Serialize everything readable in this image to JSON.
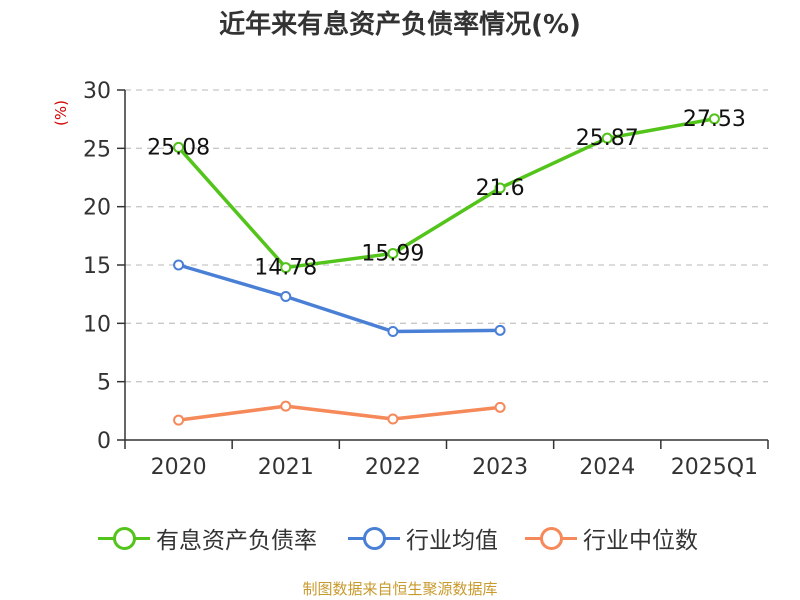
{
  "chart_data": {
    "type": "line",
    "title": "近年来有息资产负债率情况(%)",
    "ylabel": "(%)",
    "categories": [
      "2020",
      "2021",
      "2022",
      "2023",
      "2024",
      "2025Q1"
    ],
    "ylim": [
      0,
      30
    ],
    "yticks": [
      0,
      5,
      10,
      15,
      20,
      25,
      30
    ],
    "grid": "horizontal-dashed",
    "legend_position": "bottom",
    "series": [
      {
        "name": "有息资产负债率",
        "color": "#52c41a",
        "values": [
          25.08,
          14.78,
          15.99,
          21.6,
          25.87,
          27.53
        ],
        "data_labels": [
          "25.08",
          "14.78",
          "15.99",
          "21.6",
          "25.87",
          "27.53"
        ]
      },
      {
        "name": "行业均值",
        "color": "#4a7fd6",
        "values": [
          15.0,
          12.3,
          9.3,
          9.4,
          null,
          null
        ]
      },
      {
        "name": "行业中位数",
        "color": "#f5895a",
        "values": [
          1.7,
          2.9,
          1.8,
          2.8,
          null,
          null
        ]
      }
    ]
  },
  "source": "制图数据来自恒生聚源数据库"
}
